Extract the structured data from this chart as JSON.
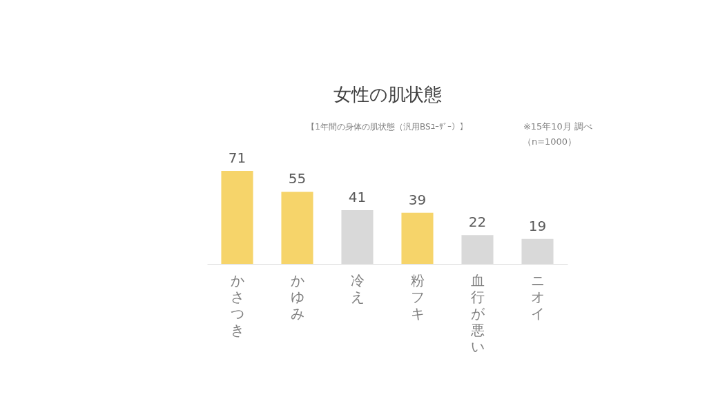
{
  "chart_data": {
    "type": "bar",
    "title": "女性の肌状態",
    "subtitle": "【1年間の身体の肌状態（汎用BSﾕｰｻﾞｰ）】",
    "categories": [
      "かさつき",
      "かゆみ",
      "冷え",
      "粉フキ",
      "血行が悪い",
      "ニオイ"
    ],
    "values": [
      71,
      55,
      41,
      39,
      22,
      19
    ],
    "colors": [
      "#f6d46a",
      "#f6d46a",
      "#d9d9d9",
      "#f6d46a",
      "#d9d9d9",
      "#d9d9d9"
    ],
    "data_labels": true,
    "tick_labels": "x",
    "annotations": [
      "※15年10月 調べ",
      "（n=1000）"
    ]
  }
}
